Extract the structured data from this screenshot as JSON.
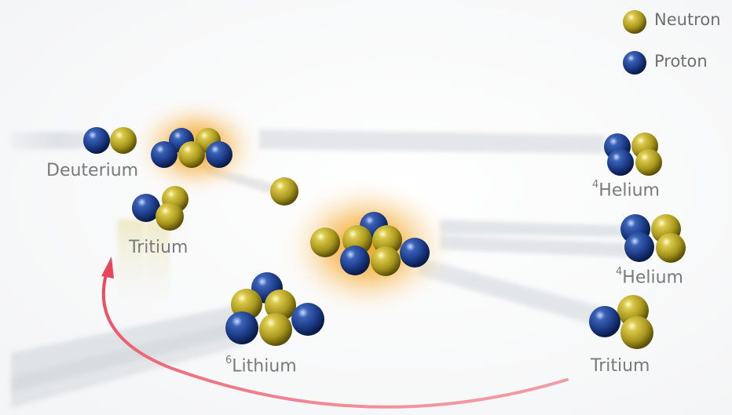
{
  "colors": {
    "neutron": "#b7a622",
    "proton": "#1f3f8c",
    "arrow": "#e8475b",
    "glow": "#f2a20f",
    "label": "#7a7a7a"
  },
  "legend": {
    "neutron": "Neutron",
    "proton": "Proton"
  },
  "labels": {
    "deuterium": "Deuterium",
    "tritium_left": "Tritium",
    "helium_top_sup": "4",
    "helium_top": "Helium",
    "helium_mid_sup": "4",
    "helium_mid": "Helium",
    "lithium_sup": "6",
    "lithium": "Lithium",
    "tritium_right": "Tritium"
  }
}
